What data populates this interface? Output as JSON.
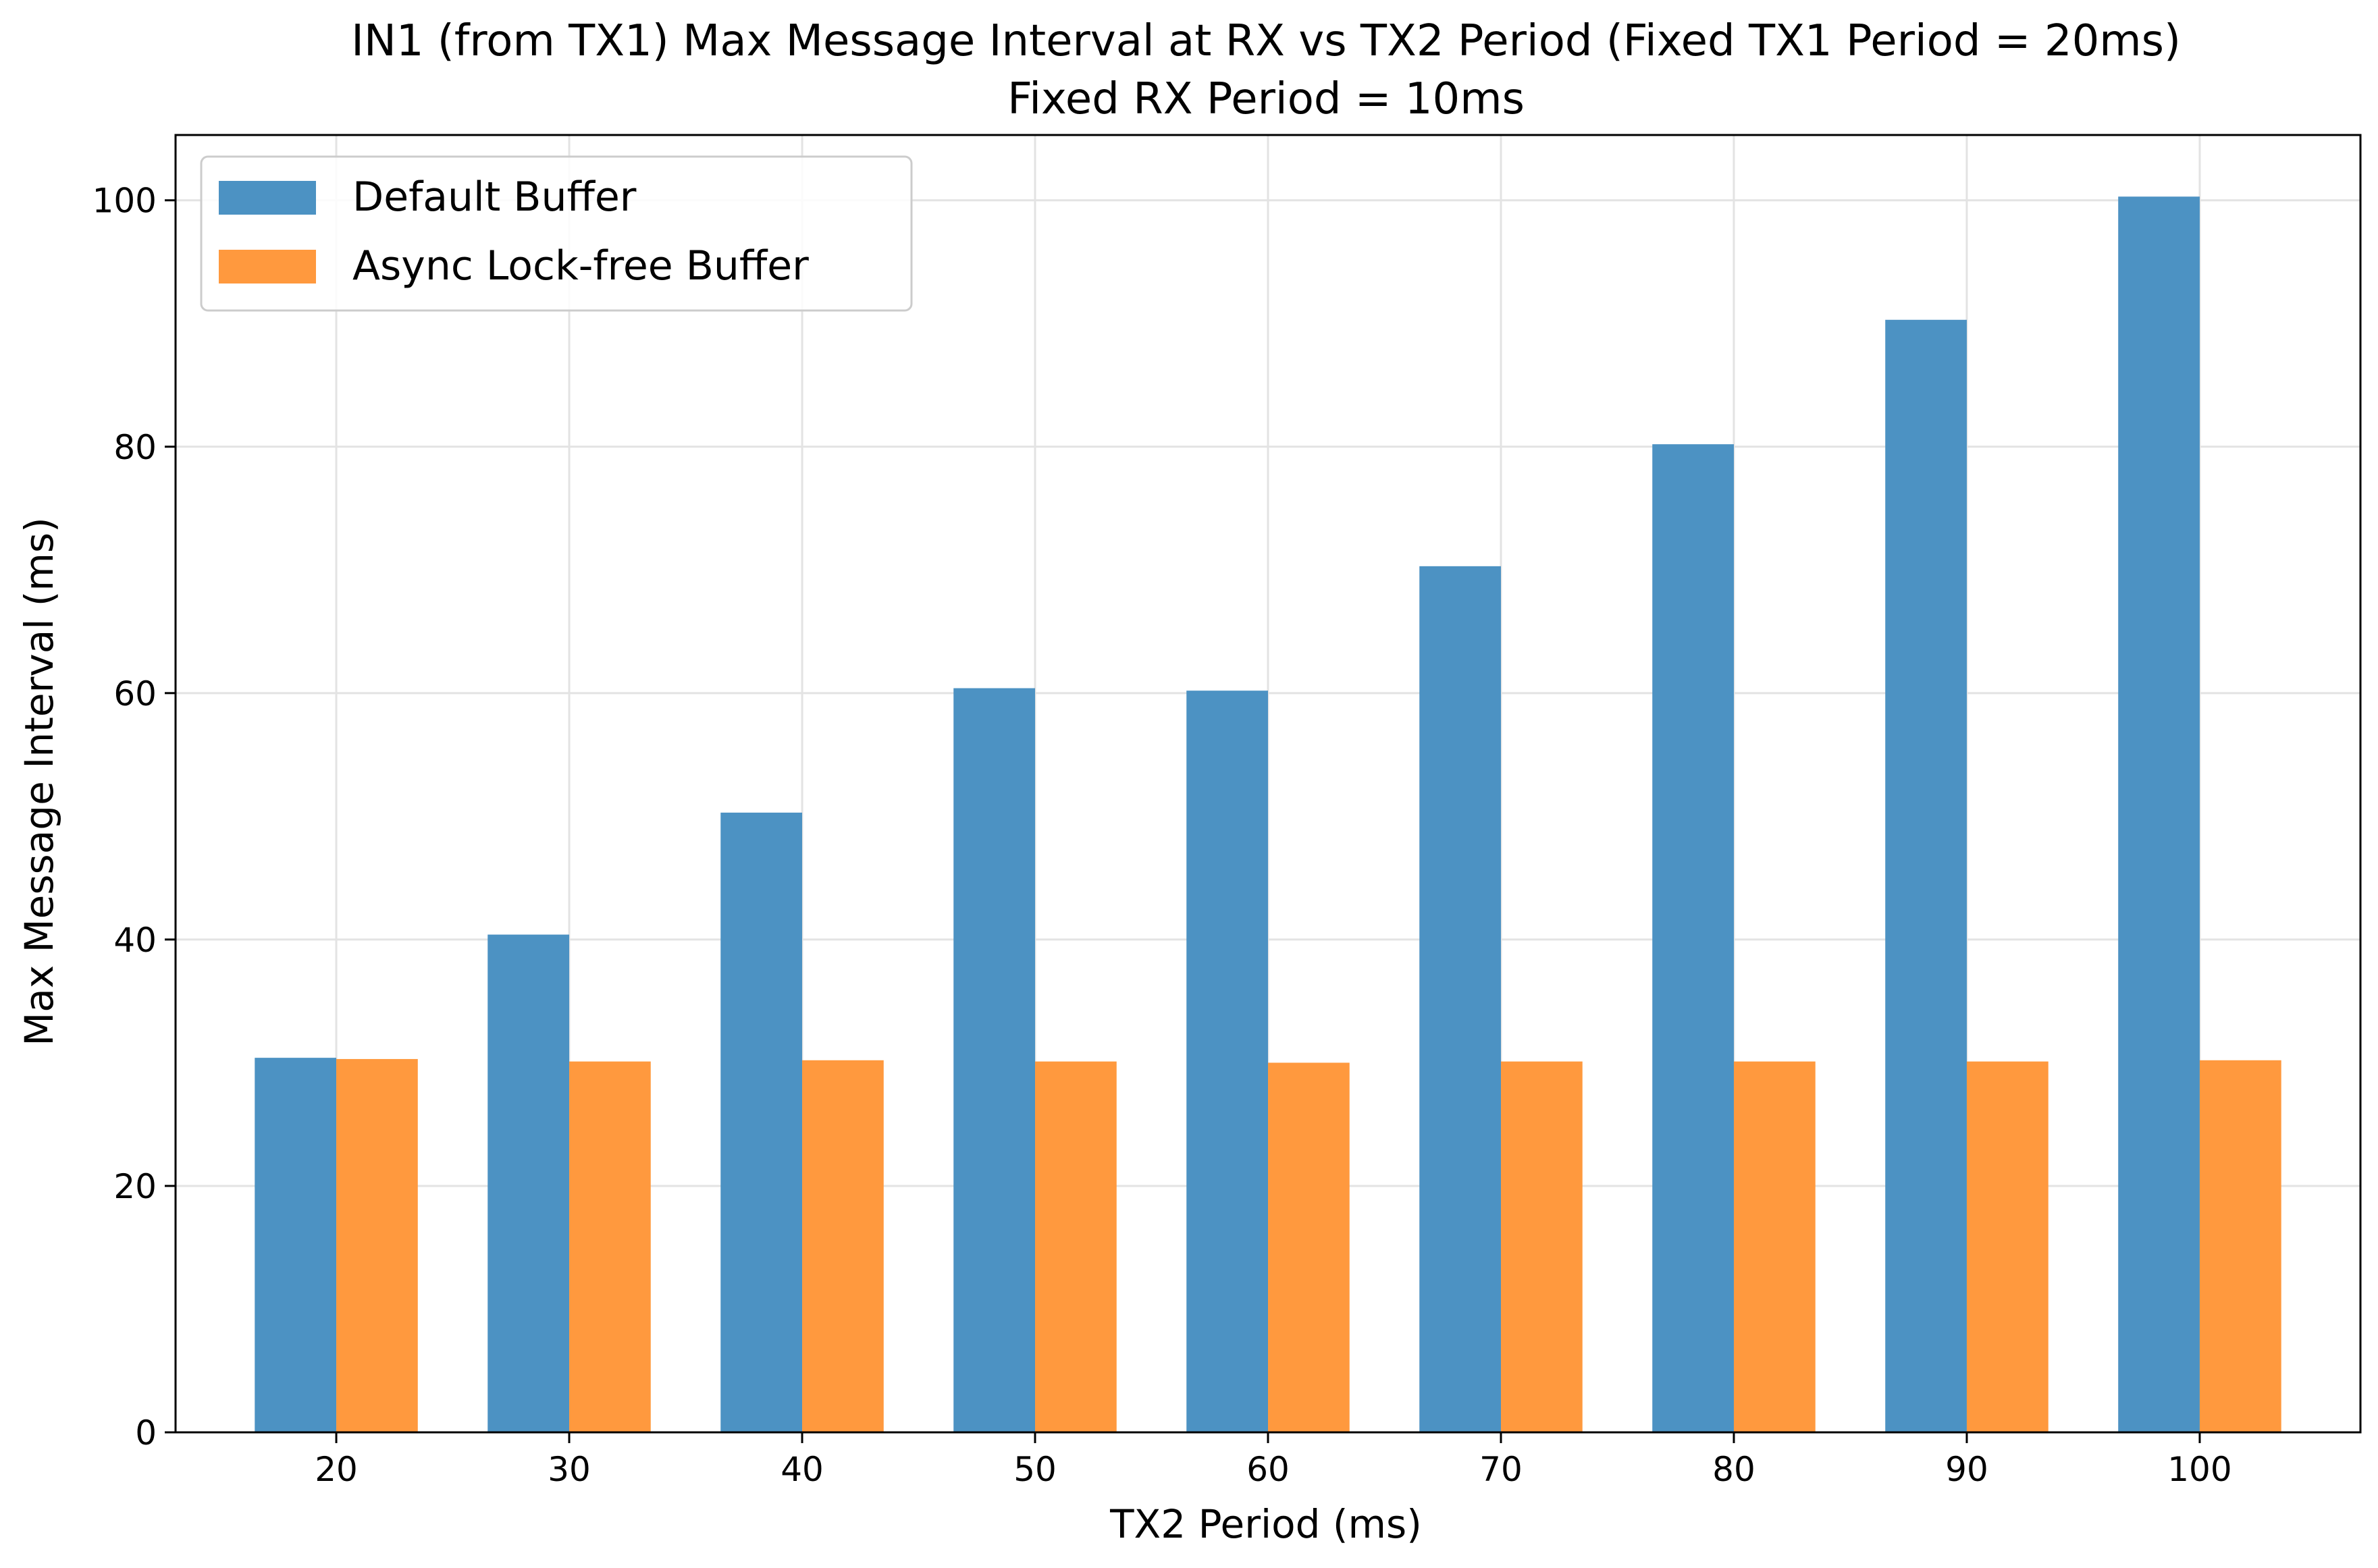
{
  "chart_data": {
    "type": "bar",
    "title": "IN1 (from TX1) Max Message Interval at RX vs TX2 Period (Fixed TX1 Period = 20ms)",
    "subtitle": "Fixed RX Period = 10ms",
    "xlabel": "TX2 Period (ms)",
    "ylabel": "Max Message Interval (ms)",
    "categories": [
      "20",
      "30",
      "40",
      "50",
      "60",
      "70",
      "80",
      "90",
      "100"
    ],
    "series": [
      {
        "name": "Default Buffer",
        "color": "#4c92c3",
        "values": [
          30.4,
          40.4,
          50.3,
          60.4,
          60.2,
          70.3,
          80.2,
          90.3,
          100.3
        ]
      },
      {
        "name": "Async Lock-free Buffer",
        "color": "#ff993e",
        "values": [
          30.3,
          30.1,
          30.2,
          30.1,
          30.0,
          30.1,
          30.1,
          30.1,
          30.2
        ]
      }
    ],
    "ylim": [
      0,
      105.3
    ],
    "yticks": [
      0,
      20,
      40,
      60,
      80,
      100
    ],
    "grid": true,
    "legend": "top-left"
  }
}
